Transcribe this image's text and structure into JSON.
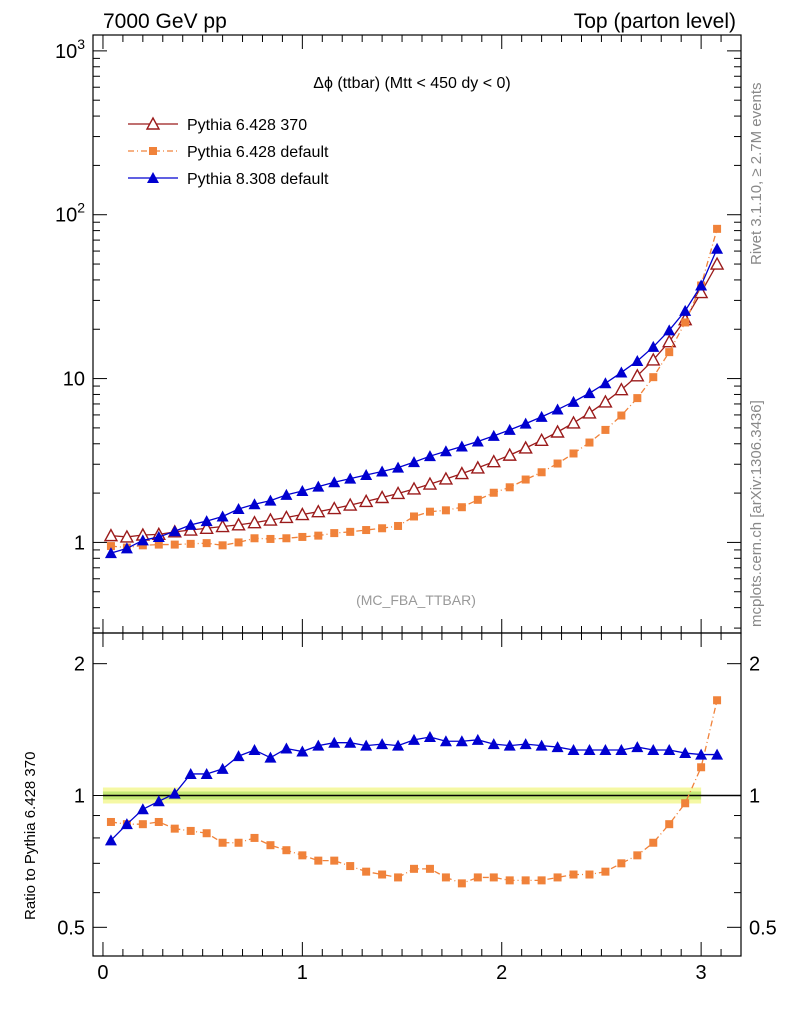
{
  "header": {
    "left": "7000 GeV pp",
    "right": "Top (parton level)"
  },
  "side_labels": {
    "rivet": "Rivet 3.1.10, ≥ 2.7M events",
    "mcplots": "mcplots.cern.ch [arXiv:1306.3436]"
  },
  "chart_data": [
    {
      "type": "line",
      "title": "Δϕ (ttbar) (Mtt < 450 dy < 0)",
      "watermark": "(MC_FBA_TTBAR)",
      "yscale": "log",
      "xlim": [
        -0.05,
        3.2
      ],
      "ylim": [
        0.28,
        1250
      ],
      "y_tick_labels": [
        "1",
        "10",
        "10^2",
        "10^3"
      ],
      "legend_position": "top-left",
      "x": [
        0.04,
        0.12,
        0.2,
        0.28,
        0.36,
        0.44,
        0.52,
        0.6,
        0.68,
        0.76,
        0.84,
        0.92,
        1.0,
        1.08,
        1.16,
        1.24,
        1.32,
        1.4,
        1.48,
        1.56,
        1.64,
        1.72,
        1.8,
        1.88,
        1.96,
        2.04,
        2.12,
        2.2,
        2.28,
        2.36,
        2.44,
        2.52,
        2.6,
        2.68,
        2.76,
        2.84,
        2.92,
        3.0,
        3.08
      ],
      "series": [
        {
          "name": "Pythia 6.428 370",
          "color": "#9b1b1b",
          "marker": "open-triangle",
          "values": [
            1.1,
            1.08,
            1.11,
            1.12,
            1.16,
            1.19,
            1.22,
            1.25,
            1.28,
            1.32,
            1.37,
            1.42,
            1.48,
            1.54,
            1.61,
            1.69,
            1.78,
            1.88,
            1.99,
            2.12,
            2.27,
            2.44,
            2.63,
            2.85,
            3.11,
            3.41,
            3.77,
            4.2,
            4.72,
            5.36,
            6.17,
            7.2,
            8.55,
            10.4,
            13.0,
            16.8,
            22.9,
            33.5,
            50.0
          ]
        },
        {
          "name": "Pythia 6.428 default",
          "color": "#f0823a",
          "marker": "filled-square",
          "values": [
            0.95,
            0.93,
            0.96,
            0.97,
            0.97,
            0.98,
            0.99,
            0.96,
            1.0,
            1.06,
            1.05,
            1.06,
            1.08,
            1.1,
            1.14,
            1.16,
            1.19,
            1.22,
            1.26,
            1.44,
            1.54,
            1.57,
            1.64,
            1.82,
            2.01,
            2.17,
            2.42,
            2.68,
            3.03,
            3.49,
            4.07,
            4.86,
            5.95,
            7.6,
            10.2,
            14.5,
            22.0,
            37.0,
            82.0
          ]
        },
        {
          "name": "Pythia 8.308 default",
          "color": "#0000d0",
          "marker": "filled-triangle",
          "values": [
            0.86,
            0.92,
            1.03,
            1.08,
            1.17,
            1.28,
            1.35,
            1.44,
            1.6,
            1.71,
            1.8,
            1.95,
            2.06,
            2.19,
            2.33,
            2.45,
            2.58,
            2.71,
            2.86,
            3.09,
            3.36,
            3.6,
            3.85,
            4.13,
            4.47,
            4.86,
            5.31,
            5.84,
            6.47,
            7.21,
            8.15,
            9.36,
            10.9,
            12.8,
            15.6,
            19.7,
            25.9,
            37.0,
            62.0
          ]
        }
      ]
    },
    {
      "type": "line",
      "ylabel": "Ratio to Pythia 6.428 370",
      "xlim": [
        -0.05,
        3.2
      ],
      "ylim": [
        0.43,
        2.35
      ],
      "x_tick_labels": [
        "0",
        "1",
        "2",
        "3"
      ],
      "y_tick_labels": [
        "0.5",
        "1",
        "2"
      ],
      "reference_line": 1.0,
      "reference_band": "yellow-green",
      "x": [
        0.04,
        0.12,
        0.2,
        0.28,
        0.36,
        0.44,
        0.52,
        0.6,
        0.68,
        0.76,
        0.84,
        0.92,
        1.0,
        1.08,
        1.16,
        1.24,
        1.32,
        1.4,
        1.48,
        1.56,
        1.64,
        1.72,
        1.8,
        1.88,
        1.96,
        2.04,
        2.12,
        2.2,
        2.28,
        2.36,
        2.44,
        2.52,
        2.6,
        2.68,
        2.76,
        2.84,
        2.92,
        3.0,
        3.08
      ],
      "series": [
        {
          "name": "Pythia 6.428 default",
          "color": "#f0823a",
          "marker": "filled-square",
          "values": [
            0.87,
            0.86,
            0.86,
            0.87,
            0.84,
            0.83,
            0.82,
            0.78,
            0.78,
            0.8,
            0.77,
            0.75,
            0.73,
            0.71,
            0.71,
            0.69,
            0.67,
            0.66,
            0.65,
            0.68,
            0.68,
            0.65,
            0.63,
            0.65,
            0.65,
            0.64,
            0.64,
            0.64,
            0.65,
            0.66,
            0.66,
            0.67,
            0.7,
            0.73,
            0.78,
            0.86,
            0.96,
            1.16,
            1.65
          ]
        },
        {
          "name": "Pythia 8.308 default",
          "color": "#0000d0",
          "marker": "filled-triangle",
          "values": [
            0.79,
            0.86,
            0.93,
            0.97,
            1.01,
            1.12,
            1.12,
            1.15,
            1.23,
            1.27,
            1.22,
            1.28,
            1.26,
            1.3,
            1.32,
            1.32,
            1.3,
            1.31,
            1.3,
            1.34,
            1.36,
            1.33,
            1.33,
            1.34,
            1.31,
            1.3,
            1.31,
            1.3,
            1.29,
            1.27,
            1.27,
            1.27,
            1.27,
            1.29,
            1.27,
            1.27,
            1.25,
            1.24,
            1.24
          ]
        }
      ]
    }
  ]
}
